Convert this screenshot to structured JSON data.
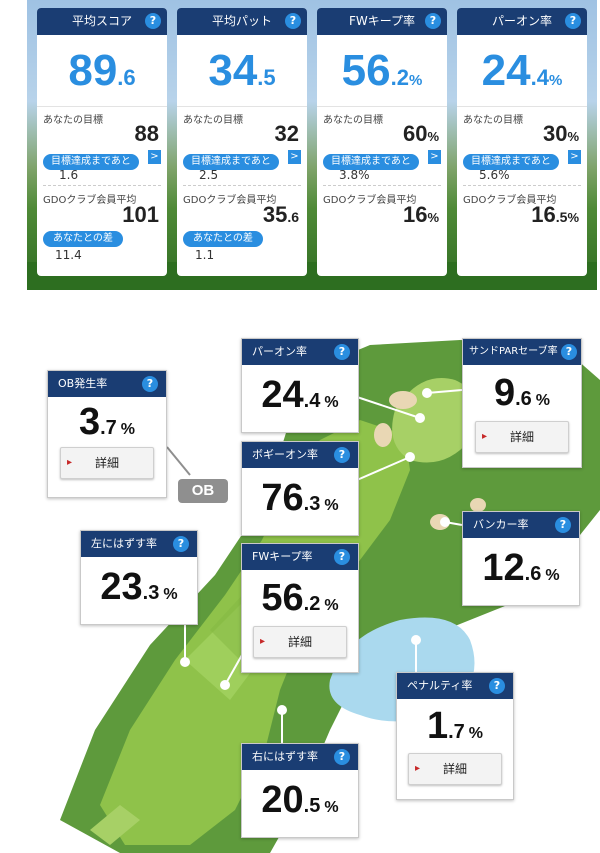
{
  "summary_cards": [
    {
      "title": "平均スコア",
      "value_int": "89",
      "value_dec": ".6",
      "value_unit": "",
      "goal_label": "あなたの目標",
      "goal_value": "88",
      "goal_unit": "",
      "remaining_label": "目標達成まであと",
      "remaining_value": "1.6",
      "average_label": "GDOクラブ会員平均",
      "average_int": "101",
      "average_dec": "",
      "average_unit": "",
      "diff_label": "あなたとの差",
      "diff_value": "11.4"
    },
    {
      "title": "平均パット",
      "value_int": "34",
      "value_dec": ".5",
      "value_unit": "",
      "goal_label": "あなたの目標",
      "goal_value": "32",
      "goal_unit": "",
      "remaining_label": "目標達成まであと",
      "remaining_value": "2.5",
      "average_label": "GDOクラブ会員平均",
      "average_int": "35",
      "average_dec": ".6",
      "average_unit": "",
      "diff_label": "あなたとの差",
      "diff_value": "1.1"
    },
    {
      "title": "FWキープ率",
      "value_int": "56",
      "value_dec": ".2",
      "value_unit": "%",
      "goal_label": "あなたの目標",
      "goal_value": "60",
      "goal_unit": "%",
      "remaining_label": "目標達成まであと",
      "remaining_value": "3.8%",
      "average_label": "GDOクラブ会員平均",
      "average_int": "16",
      "average_dec": "",
      "average_unit": "%",
      "diff_label": "",
      "diff_value": ""
    },
    {
      "title": "パーオン率",
      "value_int": "24",
      "value_dec": ".4",
      "value_unit": "%",
      "goal_label": "あなたの目標",
      "goal_value": "30",
      "goal_unit": "%",
      "remaining_label": "目標達成まであと",
      "remaining_value": "5.6%",
      "average_label": "GDOクラブ会員平均",
      "average_int": "16",
      "average_dec": ".5",
      "average_unit": "%",
      "diff_label": "",
      "diff_value": ""
    }
  ],
  "help_icon": "?",
  "arrow_icon": ">",
  "course_stats": {
    "ob": {
      "title": "OB発生率",
      "int": "3",
      "dec": ".7",
      "unit": "%"
    },
    "left_miss": {
      "title": "左にはずす率",
      "int": "23",
      "dec": ".3",
      "unit": "%"
    },
    "par_on": {
      "title": "パーオン率",
      "int": "24",
      "dec": ".4",
      "unit": "%"
    },
    "bogey_on": {
      "title": "ボギーオン率",
      "int": "76",
      "dec": ".3",
      "unit": "%"
    },
    "fw_keep": {
      "title": "FWキープ率",
      "int": "56",
      "dec": ".2",
      "unit": "%"
    },
    "sand_save": {
      "title": "サンドPARセーブ率",
      "int": "9",
      "dec": ".6",
      "unit": "%"
    },
    "bunker": {
      "title": "バンカー率",
      "int": "12",
      "dec": ".6",
      "unit": "%"
    },
    "penalty": {
      "title": "ペナルティ率",
      "int": "1",
      "dec": ".7",
      "unit": "%"
    },
    "right_miss": {
      "title": "右にはずす率",
      "int": "20",
      "dec": ".5",
      "unit": "%"
    }
  },
  "detail_label": "詳細",
  "ob_tag": "OB",
  "colors": {
    "header": "#1a3d73",
    "accent": "#2a8ee0",
    "fairway": "#8fc24a",
    "rough": "#5e9a3c",
    "water": "#aad9ee",
    "sand": "#e9d7b4"
  }
}
